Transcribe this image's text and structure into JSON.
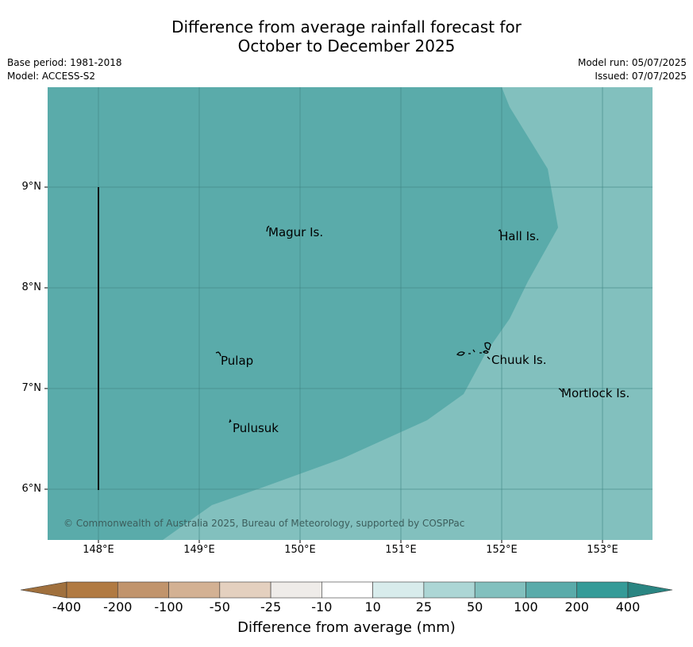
{
  "title": {
    "line1": "Difference from average rainfall forecast for",
    "line2": "October to December 2025"
  },
  "meta": {
    "base_period": "Base period: 1981-2018",
    "model": "Model: ACCESS-S2",
    "model_run": "Model run: 05/07/2025",
    "issued": "Issued: 07/07/2025"
  },
  "axes": {
    "y_ticks": [
      "9°N",
      "8°N",
      "7°N",
      "6°N"
    ],
    "x_ticks": [
      "148°E",
      "149°E",
      "150°E",
      "151°E",
      "152°E",
      "153°E"
    ]
  },
  "places": [
    {
      "name": "Magur Is."
    },
    {
      "name": "Hall Is."
    },
    {
      "name": "Pulap"
    },
    {
      "name": "Chuuk Is."
    },
    {
      "name": "Mortlock Is."
    },
    {
      "name": "Pulusuk"
    }
  ],
  "copyright": "© Commonwealth of Australia 2025, Bureau of Meteorology, supported by COSPPac",
  "colorbar": {
    "title": "Difference from average (mm)",
    "labels": [
      "-400",
      "-200",
      "-100",
      "-50",
      "-25",
      "-10",
      "10",
      "25",
      "50",
      "100",
      "200",
      "400"
    ],
    "colors": [
      "#a0703d",
      "#b17a42",
      "#c1946c",
      "#d3b193",
      "#e4d0bf",
      "#efece9",
      "#ffffff",
      "#d8ecec",
      "#acd6d5",
      "#82c0be",
      "#5aabaa",
      "#359b98",
      "#2a8582"
    ]
  },
  "map_colors": {
    "zone_100_200": "#5aabaa",
    "zone_50_100": "#82c0be",
    "grid": "#3d7f7d"
  }
}
